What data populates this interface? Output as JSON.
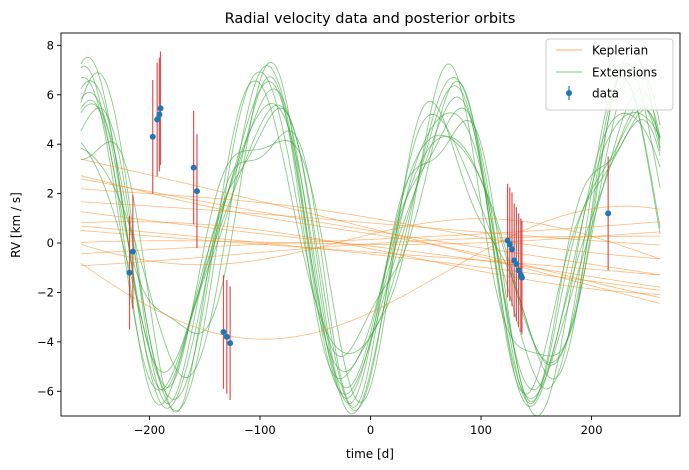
{
  "chart_data": {
    "type": "line",
    "title": "Radial velocity data and posterior orbits",
    "xlabel": "time [d]",
    "ylabel": "RV [km / s]",
    "xlim": [
      -280,
      280
    ],
    "ylim": [
      -7.0,
      8.5
    ],
    "xticks": [
      -200,
      -100,
      0,
      100,
      200
    ],
    "xtick_labels": [
      "−200",
      "−100",
      "0",
      "100",
      "200"
    ],
    "yticks": [
      -6,
      -4,
      -2,
      0,
      2,
      4,
      6,
      8
    ],
    "ytick_labels": [
      "−6",
      "−4",
      "−2",
      "0",
      "2",
      "4",
      "6",
      "8"
    ],
    "grid": false,
    "legend": {
      "placement": "top-right",
      "entries": [
        {
          "label": "Keplerian",
          "color": "#ff7f0e",
          "kind": "line"
        },
        {
          "label": "Extensions",
          "color": "#2ca02c",
          "kind": "line"
        },
        {
          "label": "data",
          "color": "#1f77b4",
          "kind": "errorbar"
        }
      ]
    },
    "colors": {
      "keplerian": "#ff7f0e",
      "extensions": "#2ca02c",
      "data": "#1f77b4",
      "errorbar": "#d62728"
    },
    "data": [
      {
        "t": -218,
        "rv": -1.2,
        "err": 2.3
      },
      {
        "t": -215,
        "rv": -0.35,
        "err": 2.3
      },
      {
        "t": -197,
        "rv": 4.3,
        "err": 2.3
      },
      {
        "t": -193,
        "rv": 5.0,
        "err": 2.3
      },
      {
        "t": -191,
        "rv": 5.2,
        "err": 2.3
      },
      {
        "t": -190,
        "rv": 5.45,
        "err": 2.3
      },
      {
        "t": -160,
        "rv": 3.05,
        "err": 2.3
      },
      {
        "t": -157,
        "rv": 2.1,
        "err": 2.3
      },
      {
        "t": -133,
        "rv": -3.6,
        "err": 2.3
      },
      {
        "t": -130,
        "rv": -3.8,
        "err": 2.3
      },
      {
        "t": -127,
        "rv": -4.05,
        "err": 2.3
      },
      {
        "t": 124,
        "rv": 0.1,
        "err": 2.3
      },
      {
        "t": 126,
        "rv": -0.05,
        "err": 2.3
      },
      {
        "t": 128,
        "rv": -0.25,
        "err": 2.3
      },
      {
        "t": 130,
        "rv": -0.7,
        "err": 2.3
      },
      {
        "t": 132,
        "rv": -0.85,
        "err": 2.3
      },
      {
        "t": 134,
        "rv": -1.1,
        "err": 2.3
      },
      {
        "t": 136,
        "rv": -1.3,
        "err": 2.3
      },
      {
        "t": 137,
        "rv": -1.4,
        "err": 2.3
      },
      {
        "t": 215,
        "rv": 1.2,
        "err": 2.3
      }
    ],
    "keplerian_curves": [
      {
        "c": 0.3,
        "s": -0.009,
        "A": 0.15,
        "P": 400,
        "ph": 0.5
      },
      {
        "c": -0.2,
        "s": 0.002,
        "A": 0.2,
        "P": 700,
        "ph": 1.0
      },
      {
        "c": 0.5,
        "s": -0.011,
        "A": 0.1,
        "P": 900,
        "ph": 2.0
      },
      {
        "c": -0.4,
        "s": -0.004,
        "A": 0.15,
        "P": 1200,
        "ph": 0.2
      },
      {
        "c": 0.8,
        "s": -0.003,
        "A": 0.1,
        "P": 800,
        "ph": 3.0
      },
      {
        "c": 0.1,
        "s": 0.001,
        "A": 0.2,
        "P": 600,
        "ph": 4.0
      },
      {
        "c": -0.6,
        "s": -0.005,
        "A": 0.15,
        "P": 1000,
        "ph": 1.5
      },
      {
        "c": 0.9,
        "s": -0.0055,
        "A": 0.2,
        "P": 500,
        "ph": 2.5
      },
      {
        "c": -0.2,
        "s": -0.006,
        "A": 0.1,
        "P": 650,
        "ph": 0.8
      },
      {
        "c": 0.2,
        "s": 0.003,
        "A": 0.15,
        "P": 900,
        "ph": 3.5
      },
      {
        "c": 0.6,
        "s": -0.0075,
        "A": 0.1,
        "P": 750,
        "ph": 5.0
      },
      {
        "c": -1.0,
        "s": -0.003,
        "A": 3.2,
        "P": 700,
        "ph": -0.6
      },
      {
        "c": 0.0,
        "s": -0.002,
        "A": 1.2,
        "P": 560,
        "ph": 0.3
      },
      {
        "c": -0.5,
        "s": -0.003,
        "A": 0.8,
        "P": 800,
        "ph": 2.8
      }
    ],
    "extension_curves": [
      {
        "c": 0.25,
        "s": 0.0,
        "a1": 5.5,
        "p1": 164,
        "ph1": -1.05,
        "a2": 1.5,
        "p2": 82,
        "ph2": 0.3
      },
      {
        "c": 0.15,
        "s": -0.002,
        "a1": 5.8,
        "p1": 166,
        "ph1": -1.02,
        "a2": 1.2,
        "p2": 83,
        "ph2": 0.8
      },
      {
        "c": 0.3,
        "s": 0.001,
        "a1": 5.2,
        "p1": 162,
        "ph1": -1.1,
        "a2": 1.8,
        "p2": 80,
        "ph2": -0.2
      },
      {
        "c": 0.1,
        "s": -0.001,
        "a1": 6.0,
        "p1": 168,
        "ph1": -1.0,
        "a2": 1.0,
        "p2": 84,
        "ph2": 1.2
      },
      {
        "c": 0.35,
        "s": 0.0015,
        "a1": 5.4,
        "p1": 165,
        "ph1": -1.08,
        "a2": 1.6,
        "p2": 110,
        "ph2": 0.5
      },
      {
        "c": 0.2,
        "s": -0.0015,
        "a1": 5.6,
        "p1": 163,
        "ph1": -1.04,
        "a2": 1.4,
        "p2": 95,
        "ph2": -0.6
      },
      {
        "c": 0.05,
        "s": 0.0005,
        "a1": 5.9,
        "p1": 167,
        "ph1": -1.01,
        "a2": 1.3,
        "p2": 78,
        "ph2": 2.0
      },
      {
        "c": 0.3,
        "s": -0.0005,
        "a1": 5.3,
        "p1": 161,
        "ph1": -1.12,
        "a2": 1.7,
        "p2": 88,
        "ph2": 1.6
      },
      {
        "c": 0.2,
        "s": 0.002,
        "a1": 5.7,
        "p1": 169,
        "ph1": -0.98,
        "a2": 1.1,
        "p2": 100,
        "ph2": 2.4
      },
      {
        "c": 0.4,
        "s": -0.0025,
        "a1": 5.1,
        "p1": 164,
        "ph1": -1.06,
        "a2": 1.9,
        "p2": 92,
        "ph2": -1.2
      },
      {
        "c": 0.0,
        "s": 0.0,
        "a1": 6.1,
        "p1": 165,
        "ph1": -1.03,
        "a2": 0.9,
        "p2": 86,
        "ph2": 0.0
      },
      {
        "c": 0.25,
        "s": 0.001,
        "a1": 5.5,
        "p1": 166,
        "ph1": -1.07,
        "a2": 1.5,
        "p2": 120,
        "ph2": 1.0
      }
    ]
  }
}
